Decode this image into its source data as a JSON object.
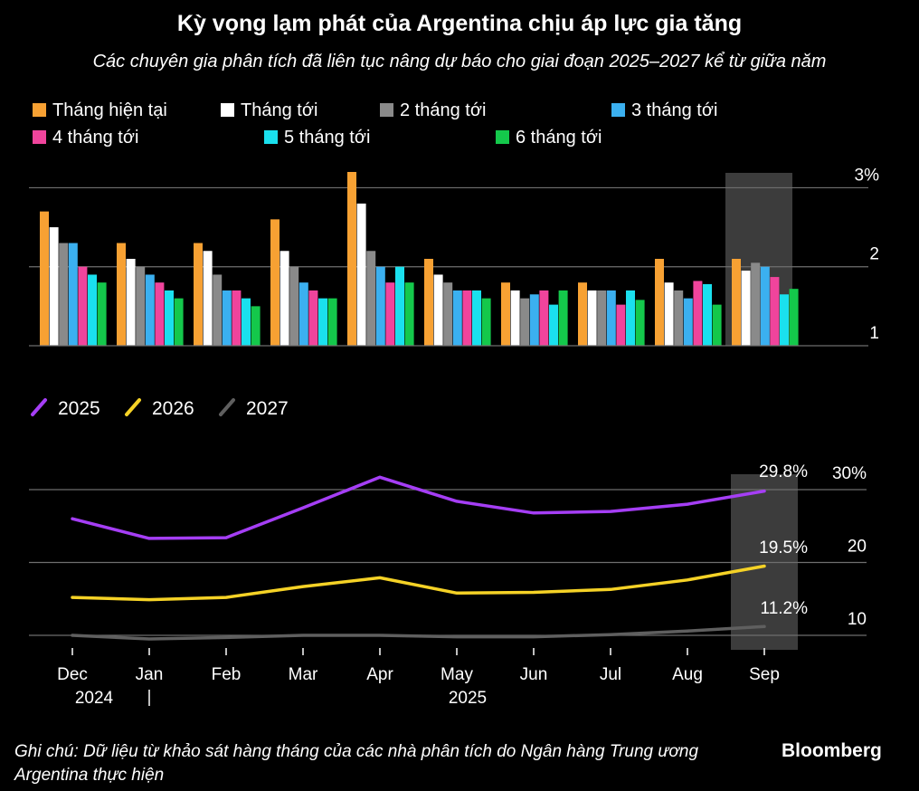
{
  "title": "Kỳ vọng lạm phát của Argentina chịu áp lực gia tăng",
  "subtitle": "Các chuyên gia phân tích đã liên tục nâng dự báo cho giai đoạn 2025–2027 kể từ giữa năm",
  "footer": {
    "note": "Ghi chú: Dữ liệu từ khảo sát hàng tháng của các nhà phân tích do Ngân hàng Trung ương Argentina thực hiện",
    "brand": "Bloomberg"
  },
  "colors": {
    "background": "#000000",
    "grid": "#6e6e6e",
    "highlight": "#3c3c3c"
  },
  "chart_data": [
    {
      "type": "bar",
      "title": "",
      "categories": [
        "Dec",
        "Jan",
        "Feb",
        "Mar",
        "Apr",
        "May",
        "Jun",
        "Jul",
        "Aug",
        "Sep"
      ],
      "ylim": [
        1,
        3.2
      ],
      "yticks": [
        {
          "value": 1,
          "label": "1"
        },
        {
          "value": 2,
          "label": "2"
        },
        {
          "value": 3,
          "label": "3%"
        }
      ],
      "highlight_category": "Sep",
      "series": [
        {
          "name": "Tháng hiện tại",
          "color": "#f7a133",
          "values": [
            2.7,
            2.3,
            2.3,
            2.6,
            3.2,
            2.1,
            1.8,
            1.8,
            2.1,
            2.1
          ]
        },
        {
          "name": "Tháng tới",
          "color": "#ffffff",
          "values": [
            2.5,
            2.1,
            2.2,
            2.2,
            2.8,
            1.9,
            1.7,
            1.7,
            1.8,
            1.95
          ]
        },
        {
          "name": "2 tháng tới",
          "color": "#8a8a8a",
          "values": [
            2.3,
            2.0,
            1.9,
            2.0,
            2.2,
            1.8,
            1.6,
            1.7,
            1.7,
            2.05
          ]
        },
        {
          "name": "3 tháng tới",
          "color": "#3bb0f0",
          "values": [
            2.3,
            1.9,
            1.7,
            1.8,
            2.0,
            1.7,
            1.65,
            1.7,
            1.6,
            2.0
          ]
        },
        {
          "name": "4 tháng tới",
          "color": "#f0449c",
          "values": [
            2.0,
            1.8,
            1.7,
            1.7,
            1.8,
            1.7,
            1.7,
            1.52,
            1.82,
            1.87
          ]
        },
        {
          "name": "5 tháng tới",
          "color": "#1ae0ee",
          "values": [
            1.9,
            1.7,
            1.6,
            1.6,
            2.0,
            1.7,
            1.52,
            1.7,
            1.78,
            1.65
          ]
        },
        {
          "name": "6 tháng tới",
          "color": "#14c84b",
          "values": [
            1.8,
            1.6,
            1.5,
            1.6,
            1.8,
            1.6,
            1.7,
            1.58,
            1.52,
            1.72
          ]
        }
      ]
    },
    {
      "type": "line",
      "title": "",
      "categories": [
        "Dec",
        "Jan",
        "Feb",
        "Mar",
        "Apr",
        "May",
        "Jun",
        "Jul",
        "Aug",
        "Sep"
      ],
      "year_labels": [
        {
          "label": "2024",
          "at": "Dec"
        },
        {
          "label": "2025",
          "at": "May"
        }
      ],
      "ylim": [
        8,
        32
      ],
      "yticks": [
        {
          "value": 10,
          "label": "10"
        },
        {
          "value": 20,
          "label": "20"
        },
        {
          "value": 30,
          "label": "30%"
        }
      ],
      "highlight_category": "Sep",
      "series": [
        {
          "name": "2025",
          "color": "#a53ef5",
          "values": [
            26.0,
            23.3,
            23.4,
            27.5,
            31.7,
            28.4,
            26.8,
            27.0,
            28.0,
            29.8
          ],
          "end_label": "29.8%"
        },
        {
          "name": "2026",
          "color": "#f5d226",
          "values": [
            15.2,
            14.9,
            15.2,
            16.7,
            17.9,
            15.8,
            15.9,
            16.3,
            17.6,
            19.5
          ],
          "end_label": "19.5%"
        },
        {
          "name": "2027",
          "color": "#5f5f5f",
          "values": [
            10.0,
            9.5,
            9.7,
            10.0,
            10.0,
            9.8,
            9.8,
            10.1,
            10.6,
            11.2
          ],
          "end_label": "11.2%"
        }
      ]
    }
  ]
}
